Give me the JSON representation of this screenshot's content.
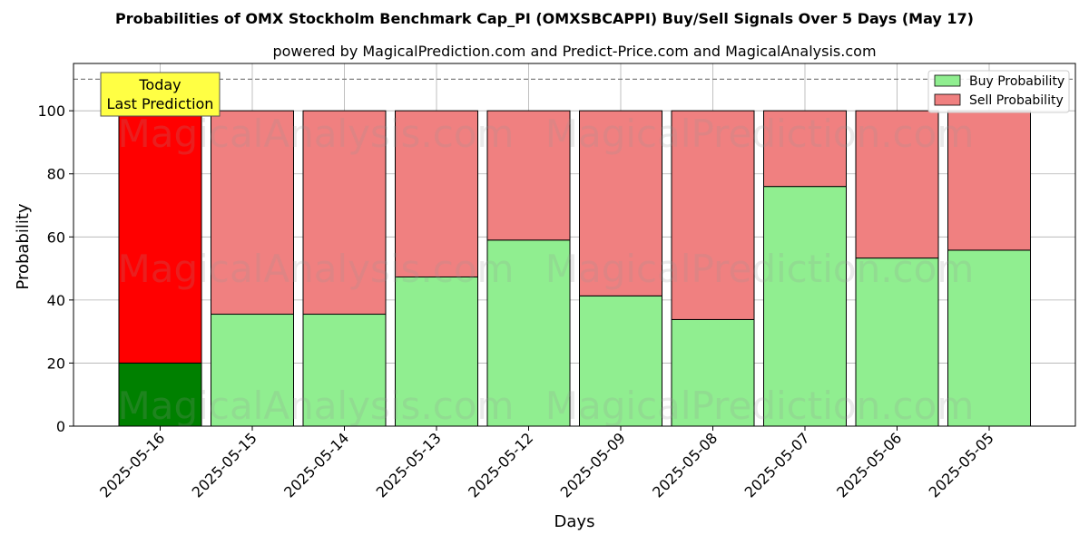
{
  "chart_data": {
    "type": "bar",
    "stacked": true,
    "title": "Probabilities of OMX Stockholm Benchmark Cap_PI (OMXSBCAPPI) Buy/Sell Signals Over 5 Days (May 17)",
    "subtitle": "powered by MagicalPrediction.com and Predict-Price.com and MagicalAnalysis.com",
    "xlabel": "Days",
    "ylabel": "Probability",
    "categories": [
      "2025-05-16",
      "2025-05-15",
      "2025-05-14",
      "2025-05-13",
      "2025-05-12",
      "2025-05-09",
      "2025-05-08",
      "2025-05-07",
      "2025-05-06",
      "2025-05-05"
    ],
    "series": [
      {
        "name": "Buy Probability",
        "values": [
          20,
          35.5,
          35.5,
          47.3,
          59,
          41.3,
          33.8,
          76,
          53.3,
          55.8
        ]
      },
      {
        "name": "Sell Probability",
        "values": [
          80,
          64.5,
          64.5,
          52.7,
          41,
          58.7,
          66.2,
          24,
          46.7,
          44.2
        ]
      }
    ],
    "ylim": [
      0,
      115
    ],
    "yticks": [
      0,
      20,
      40,
      60,
      80,
      100
    ],
    "grid": true,
    "legend_position": "top-right",
    "reference_line": 110,
    "annotation": {
      "lines": [
        "Today",
        "Last Prediction"
      ]
    },
    "watermarks": [
      "MagicalAnalysis.com",
      "MagicalPrediction.com"
    ],
    "colors": {
      "buy": "#90ee90",
      "sell": "#f08080",
      "today_buy": "#008000",
      "today_sell": "#ff0000",
      "annotation_bg": "#ffff44",
      "grid": "#b0b0b0"
    }
  }
}
